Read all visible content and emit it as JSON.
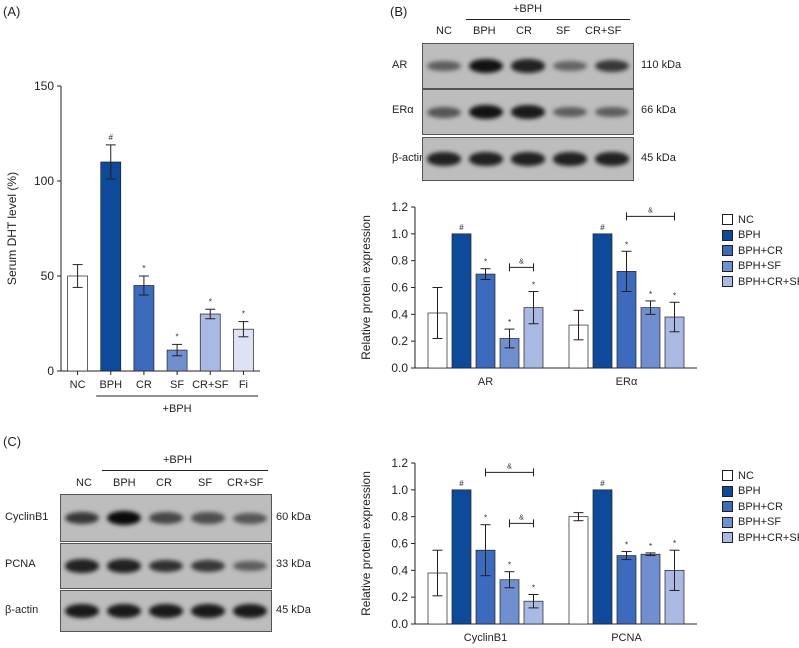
{
  "panels": {
    "a": {
      "label": "(A)",
      "ylabel": "Serum DHT level (%)",
      "group_label": "+BPH",
      "significance": "#"
    },
    "b": {
      "label": "(B)",
      "group_label": "+BPH",
      "lanes": [
        "NC",
        "BPH",
        "CR",
        "SF",
        "CR+SF"
      ],
      "blots": [
        {
          "protein": "AR",
          "kda": "110 kDa"
        },
        {
          "protein": "ERα",
          "kda": "66 kDa"
        },
        {
          "protein": "β-actin",
          "kda": "45 kDa"
        }
      ]
    },
    "c": {
      "label": "(C)",
      "group_label": "+BPH",
      "lanes": [
        "NC",
        "BPH",
        "CR",
        "SF",
        "CR+SF"
      ],
      "blots": [
        {
          "protein": "CyclinB1",
          "kda": "60 kDa"
        },
        {
          "protein": "PCNA",
          "kda": "33 kDa"
        },
        {
          "protein": "β-actin",
          "kda": "45 kDa"
        }
      ]
    }
  },
  "legend": {
    "entries": [
      "NC",
      "BPH",
      "BPH+CR",
      "BPH+SF",
      "BPH+CR+SF"
    ],
    "colors": [
      "#ffffff",
      "#0d4a9a",
      "#3c6bbd",
      "#6f8fd0",
      "#a9b9e3"
    ]
  },
  "chart_data": [
    {
      "type": "bar",
      "panel": "A",
      "ylabel": "Serum DHT level (%)",
      "categories": [
        "NC",
        "BPH",
        "CR",
        "SF",
        "CR+SF",
        "Fi"
      ],
      "values": [
        50,
        110,
        45,
        11,
        30,
        22
      ],
      "errors": [
        6,
        9,
        5,
        3,
        2.5,
        4
      ],
      "markers": [
        "",
        "#",
        "*",
        "*",
        "*",
        "*"
      ],
      "colors": [
        "#ffffff",
        "#0d4a9a",
        "#3c6bbd",
        "#6f8fd0",
        "#a9b9e3",
        "#dde2f5"
      ],
      "ylim": [
        0,
        150
      ],
      "yticks": [
        0,
        50,
        100,
        150
      ]
    },
    {
      "type": "bar",
      "panel": "B",
      "ylabel": "Relative protein expression",
      "categories": [
        "AR",
        "ERα"
      ],
      "series": [
        {
          "name": "NC",
          "values": [
            0.41,
            0.32
          ],
          "errors": [
            0.19,
            0.11
          ],
          "markers": [
            "",
            ""
          ]
        },
        {
          "name": "BPH",
          "values": [
            1.0,
            1.0
          ],
          "errors": [
            0,
            0
          ],
          "markers": [
            "#",
            "#"
          ]
        },
        {
          "name": "BPH+CR",
          "values": [
            0.7,
            0.72
          ],
          "errors": [
            0.04,
            0.15
          ],
          "markers": [
            "*",
            "*"
          ]
        },
        {
          "name": "BPH+SF",
          "values": [
            0.22,
            0.45
          ],
          "errors": [
            0.07,
            0.05
          ],
          "markers": [
            "*",
            "*"
          ]
        },
        {
          "name": "BPH+CR+SF",
          "values": [
            0.45,
            0.38
          ],
          "errors": [
            0.12,
            0.11
          ],
          "markers": [
            "*",
            "*"
          ]
        }
      ],
      "brackets": [
        {
          "group": 0,
          "from": 3,
          "to": 4,
          "y": 0.75,
          "label": "&"
        },
        {
          "group": 1,
          "from": 2,
          "to": 4,
          "y": 1.13,
          "label": "&"
        }
      ],
      "ylim": [
        0,
        1.2
      ],
      "yticks": [
        0,
        0.2,
        0.4,
        0.6,
        0.8,
        1.0,
        1.2
      ]
    },
    {
      "type": "bar",
      "panel": "C",
      "ylabel": "Relative protein expression",
      "categories": [
        "CyclinB1",
        "PCNA"
      ],
      "series": [
        {
          "name": "NC",
          "values": [
            0.38,
            0.8
          ],
          "errors": [
            0.17,
            0.03
          ],
          "markers": [
            "",
            ""
          ]
        },
        {
          "name": "BPH",
          "values": [
            1.0,
            1.0
          ],
          "errors": [
            0,
            0
          ],
          "markers": [
            "#",
            "#"
          ]
        },
        {
          "name": "BPH+CR",
          "values": [
            0.55,
            0.51
          ],
          "errors": [
            0.19,
            0.03
          ],
          "markers": [
            "*",
            "*"
          ]
        },
        {
          "name": "BPH+SF",
          "values": [
            0.33,
            0.52
          ],
          "errors": [
            0.06,
            0.01
          ],
          "markers": [
            "*",
            "*"
          ]
        },
        {
          "name": "BPH+CR+SF",
          "values": [
            0.17,
            0.4
          ],
          "errors": [
            0.05,
            0.15
          ],
          "markers": [
            "*",
            "*"
          ]
        }
      ],
      "brackets": [
        {
          "group": 0,
          "from": 2,
          "to": 4,
          "y": 1.13,
          "label": "&"
        },
        {
          "group": 0,
          "from": 3,
          "to": 4,
          "y": 0.75,
          "label": "&"
        }
      ],
      "ylim": [
        0,
        1.2
      ],
      "yticks": [
        0,
        0.2,
        0.4,
        0.6,
        0.8,
        1.0,
        1.2
      ]
    }
  ],
  "blot_bands": {
    "AR": [
      0.45,
      0.95,
      0.85,
      0.4,
      0.7
    ],
    "ERα": [
      0.5,
      0.95,
      0.9,
      0.45,
      0.45
    ],
    "β-actin": [
      0.85,
      0.85,
      0.85,
      0.85,
      0.85
    ],
    "CyclinB1": [
      0.7,
      1.0,
      0.6,
      0.55,
      0.5
    ],
    "PCNA": [
      0.85,
      0.85,
      0.75,
      0.7,
      0.45
    ],
    "β-actin-c": [
      0.9,
      0.9,
      0.9,
      0.9,
      0.9
    ]
  }
}
